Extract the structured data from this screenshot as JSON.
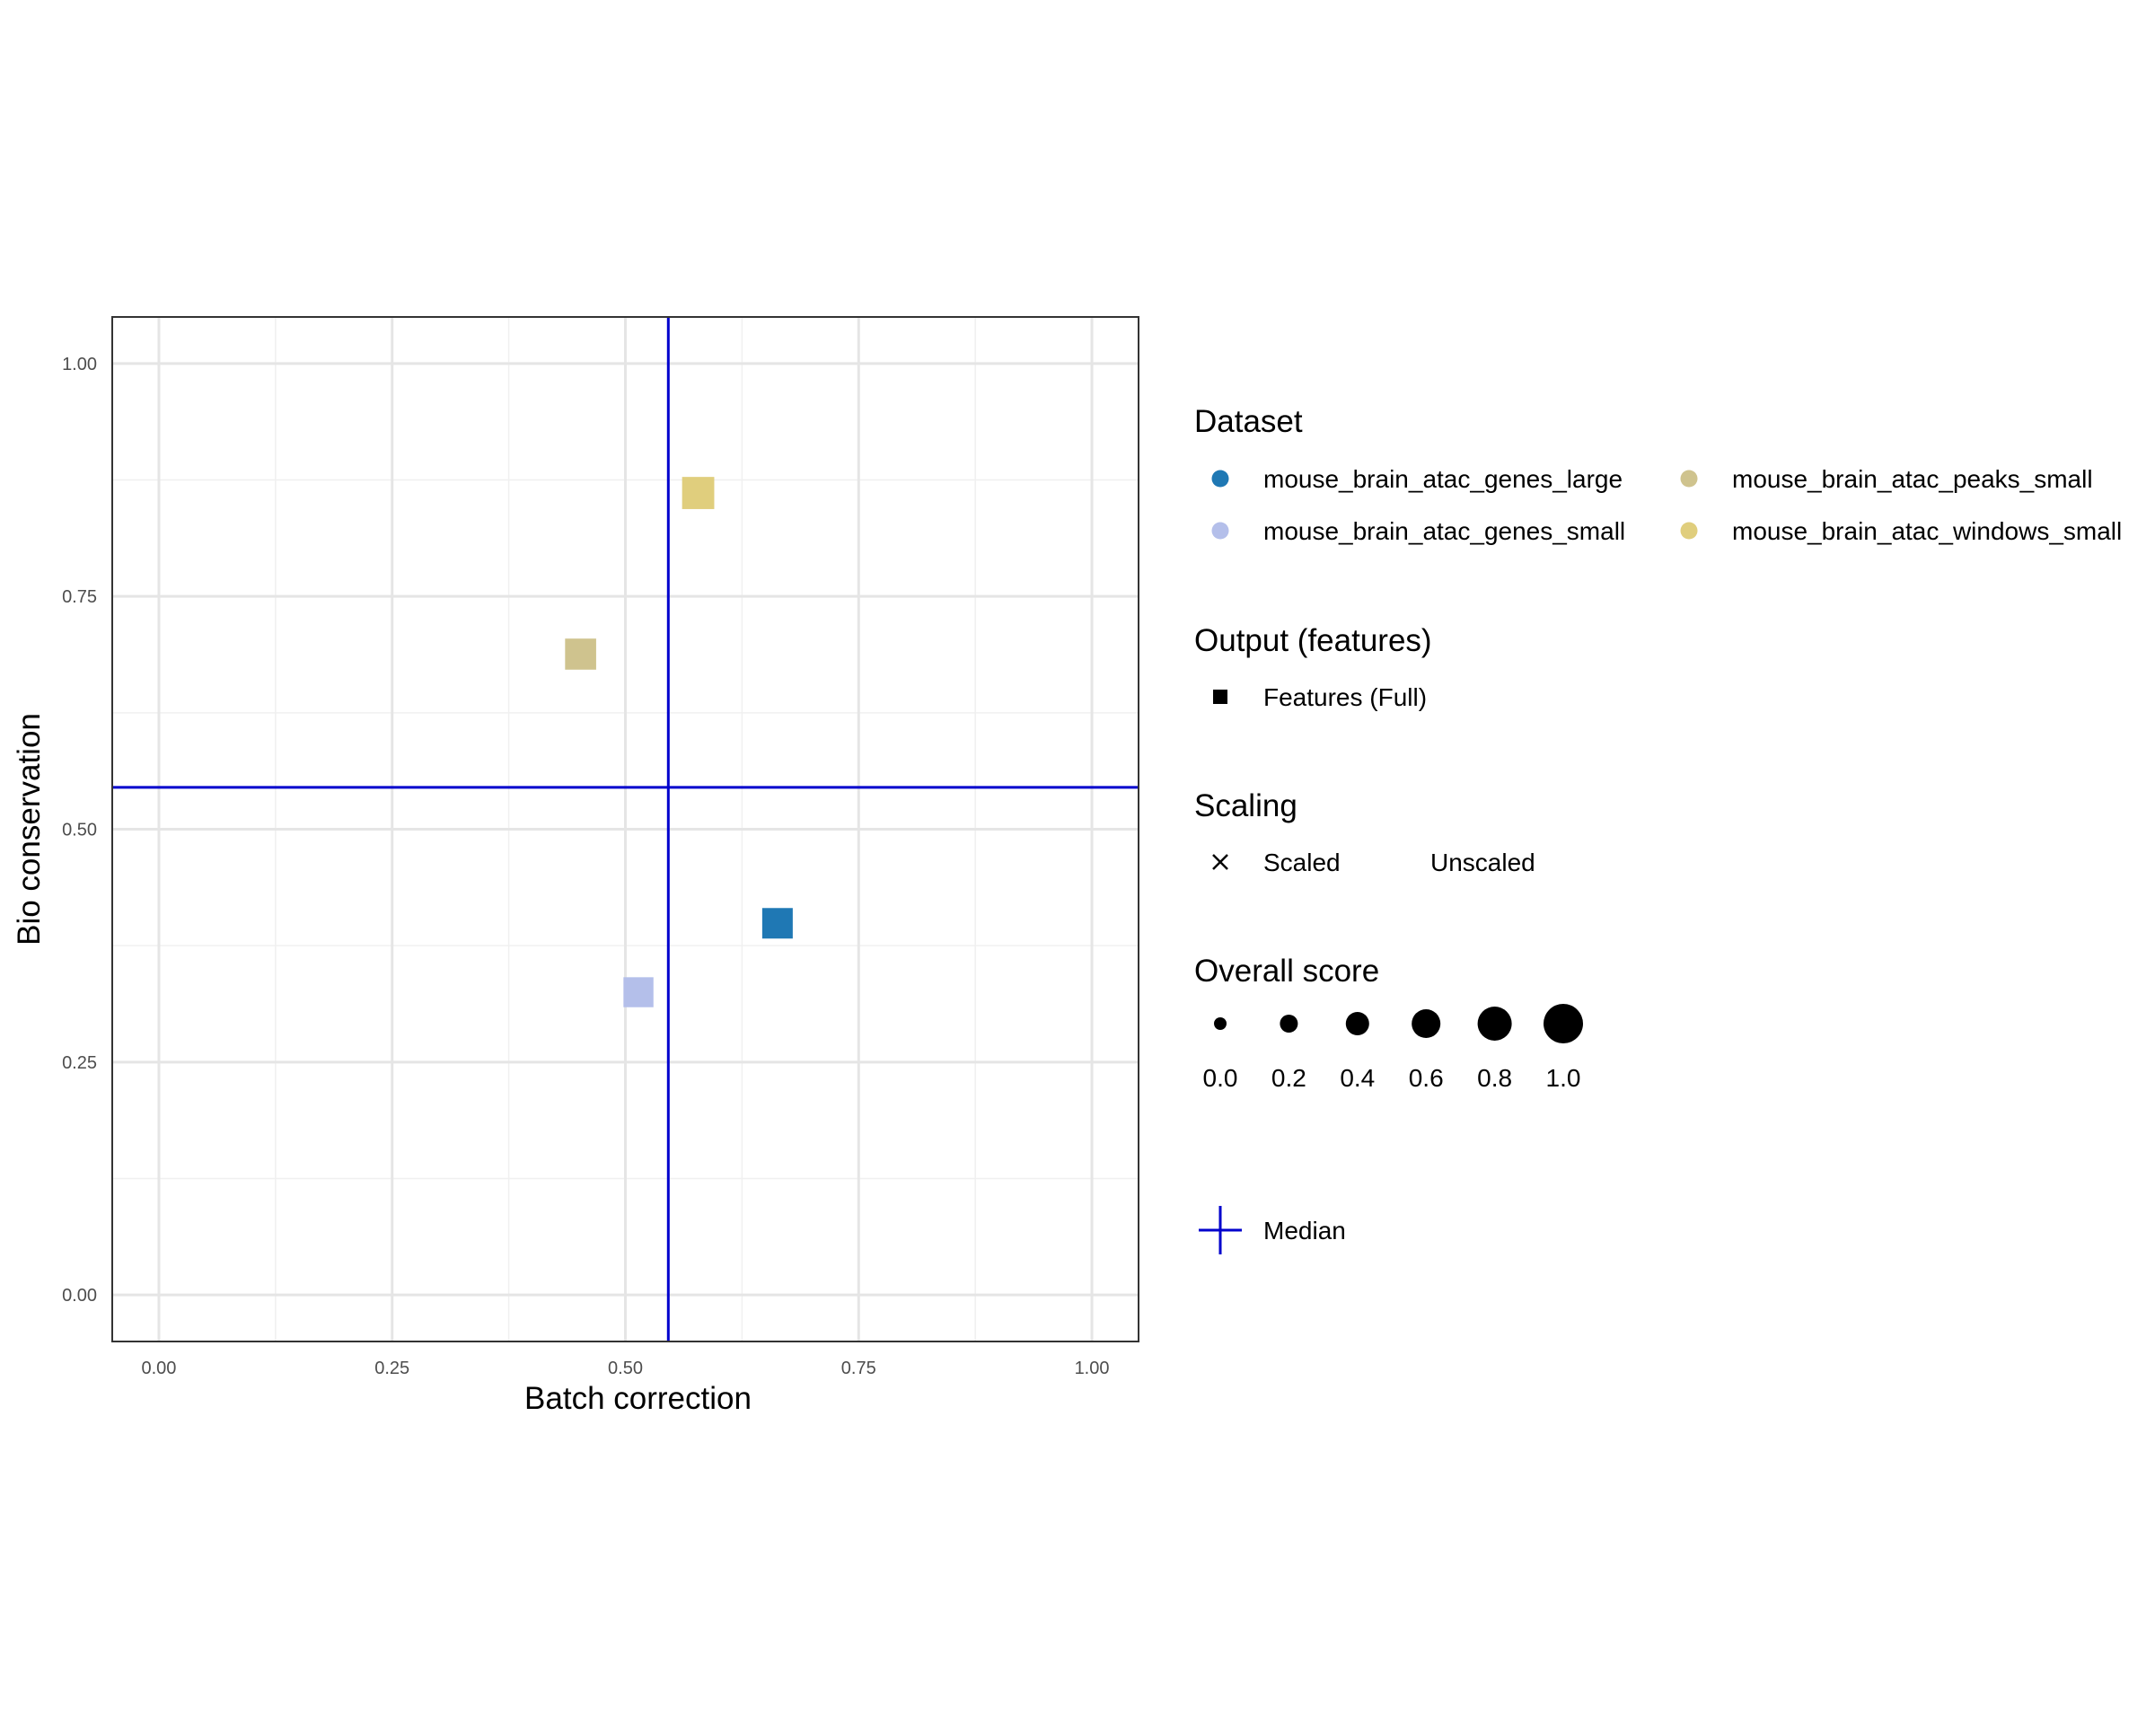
{
  "chart_data": {
    "type": "scatter",
    "title": "",
    "xlabel": "Batch correction",
    "ylabel": "Bio conservation",
    "xlim": [
      -0.05,
      1.05
    ],
    "ylim": [
      -0.05,
      1.05
    ],
    "xticks": [
      0.0,
      0.25,
      0.5,
      0.75,
      1.0
    ],
    "xtick_labels": [
      "0.00",
      "0.25",
      "0.50",
      "0.75",
      "1.00"
    ],
    "yticks": [
      0.0,
      0.25,
      0.5,
      0.75,
      1.0
    ],
    "ytick_labels": [
      "0.00",
      "0.25",
      "0.50",
      "0.75",
      "1.00"
    ],
    "grid": true,
    "legend_position": "right",
    "median": {
      "x": 0.546,
      "y": 0.545,
      "color": "#0000CD",
      "label": "Median"
    },
    "points": [
      {
        "dataset": "mouse_brain_atac_genes_large",
        "x": 0.663,
        "y": 0.399,
        "overall_score": 0.5,
        "color": "#1F78B4",
        "output": "Features (Full)"
      },
      {
        "dataset": "mouse_brain_atac_genes_small",
        "x": 0.514,
        "y": 0.325,
        "overall_score": 0.45,
        "color": "#B4BFEA",
        "output": "Features (Full)"
      },
      {
        "dataset": "mouse_brain_atac_peaks_small",
        "x": 0.452,
        "y": 0.688,
        "overall_score": 0.55,
        "color": "#CFC38E",
        "output": "Features (Full)"
      },
      {
        "dataset": "mouse_brain_atac_windows_small",
        "x": 0.578,
        "y": 0.861,
        "overall_score": 0.65,
        "color": "#E0CE7D",
        "output": "Features (Full)"
      }
    ],
    "legend": {
      "dataset": {
        "title": "Dataset",
        "entries": [
          {
            "label": "mouse_brain_atac_genes_large",
            "color": "#1F78B4"
          },
          {
            "label": "mouse_brain_atac_genes_small",
            "color": "#B4BFEA"
          },
          {
            "label": "mouse_brain_atac_peaks_small",
            "color": "#CFC38E"
          },
          {
            "label": "mouse_brain_atac_windows_small",
            "color": "#E0CE7D"
          }
        ]
      },
      "output": {
        "title": "Output (features)",
        "entries": [
          {
            "label": "Features (Full)",
            "shape": "square"
          }
        ]
      },
      "scaling": {
        "title": "Scaling",
        "entries": [
          {
            "label": "Scaled",
            "shape": "cross"
          },
          {
            "label": "Unscaled",
            "shape": "none"
          }
        ]
      },
      "overall_score": {
        "title": "Overall score",
        "entries": [
          {
            "label": "0.0",
            "value": 0.0
          },
          {
            "label": "0.2",
            "value": 0.2
          },
          {
            "label": "0.4",
            "value": 0.4
          },
          {
            "label": "0.6",
            "value": 0.6
          },
          {
            "label": "0.8",
            "value": 0.8
          },
          {
            "label": "1.0",
            "value": 1.0
          }
        ]
      },
      "median": {
        "label": "Median"
      }
    }
  }
}
